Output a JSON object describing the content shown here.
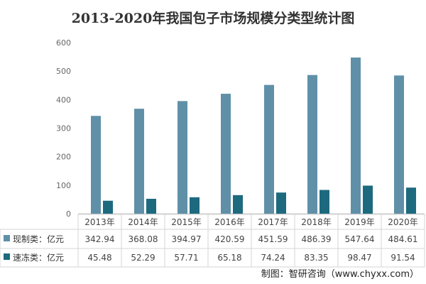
{
  "chart_data": {
    "type": "bar",
    "title": "2013-2020年我国包子市场规模分类型统计图",
    "categories": [
      "2013年",
      "2014年",
      "2015年",
      "2016年",
      "2017年",
      "2018年",
      "2019年",
      "2020年"
    ],
    "series": [
      {
        "name": "现制类：亿元",
        "color": "#5f90a8",
        "values": [
          342.94,
          368.08,
          394.97,
          420.59,
          451.59,
          486.39,
          547.64,
          484.61
        ],
        "labels": [
          "342.94",
          "368.08",
          "394.97",
          "420.59",
          "451.59",
          "486.39",
          "547.64",
          "484.61"
        ]
      },
      {
        "name": "速冻类：亿元",
        "color": "#1d6a7f",
        "values": [
          45.48,
          52.29,
          57.71,
          65.18,
          74.24,
          83.35,
          98.47,
          91.54
        ],
        "labels": [
          "45.48",
          "52.29",
          "57.71",
          "65.18",
          "74.24",
          "83.35",
          "98.47",
          "91.54"
        ]
      }
    ],
    "yticks": [
      "0",
      "100",
      "200",
      "300",
      "400",
      "500",
      "600"
    ],
    "ylim": [
      0,
      600
    ],
    "xlabel": "",
    "ylabel": "",
    "grid": false,
    "legend": "data-table",
    "source": "制图：智研咨询（www.chyxx.com）"
  }
}
